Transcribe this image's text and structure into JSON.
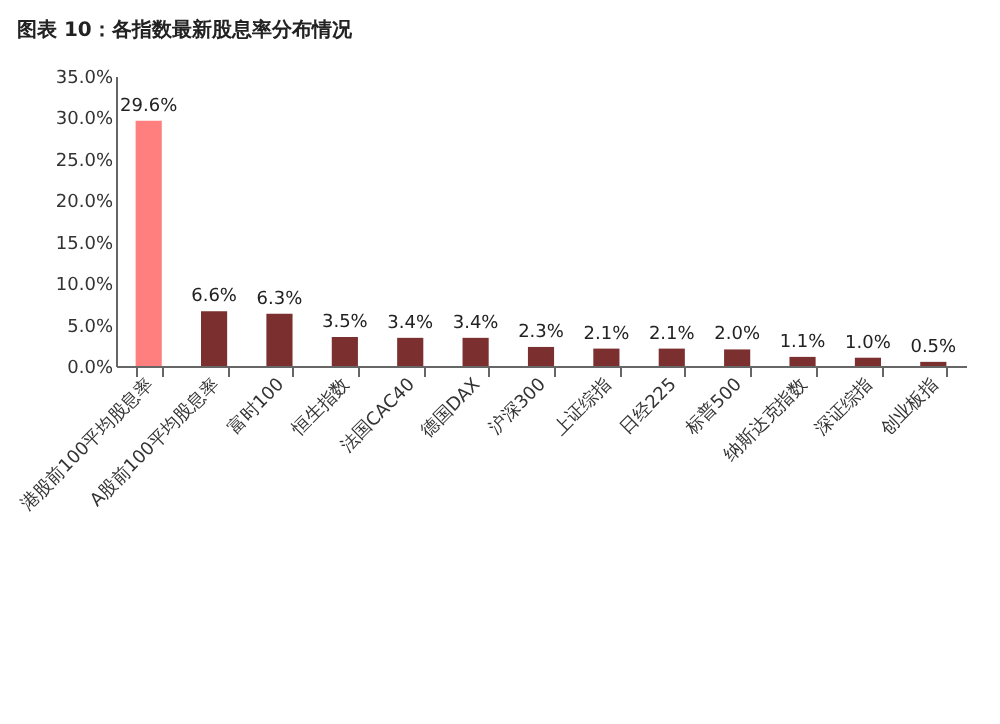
{
  "chart_data": {
    "type": "bar",
    "title": "图表 10：各指数最新股息率分布情况",
    "categories": [
      "港股前100平均股息率",
      "A股前100平均股息率",
      "富时100",
      "恒生指数",
      "法国CAC40",
      "德国DAX",
      "沪深300",
      "上证综指",
      "日经225",
      "标普500",
      "纳斯达克指数",
      "深证综指",
      "创业板指"
    ],
    "values": [
      29.6,
      6.6,
      6.3,
      3.5,
      3.4,
      3.4,
      2.3,
      2.1,
      2.1,
      2.0,
      1.1,
      1.0,
      0.5
    ],
    "value_labels": [
      "29.6%",
      "6.6%",
      "6.3%",
      "3.5%",
      "3.4%",
      "3.4%",
      "2.3%",
      "2.1%",
      "2.1%",
      "2.0%",
      "1.1%",
      "1.0%",
      "0.5%"
    ],
    "colors": [
      "#ff7f7f",
      "#7b2f2f",
      "#7b2f2f",
      "#7b2f2f",
      "#7b2f2f",
      "#7b2f2f",
      "#7b2f2f",
      "#7b2f2f",
      "#7b2f2f",
      "#7b2f2f",
      "#7b2f2f",
      "#7b2f2f",
      "#7b2f2f"
    ],
    "ylim": [
      0,
      35
    ],
    "yticks": [
      {
        "value": 0,
        "label": "0.0%"
      },
      {
        "value": 5,
        "label": "5.0%"
      },
      {
        "value": 10,
        "label": "10.0%"
      },
      {
        "value": 15,
        "label": "15.0%"
      },
      {
        "value": 20,
        "label": "20.0%"
      },
      {
        "value": 25,
        "label": "25.0%"
      },
      {
        "value": 30,
        "label": "30.0%"
      },
      {
        "value": 35,
        "label": "35.0%"
      }
    ],
    "grid": false
  }
}
